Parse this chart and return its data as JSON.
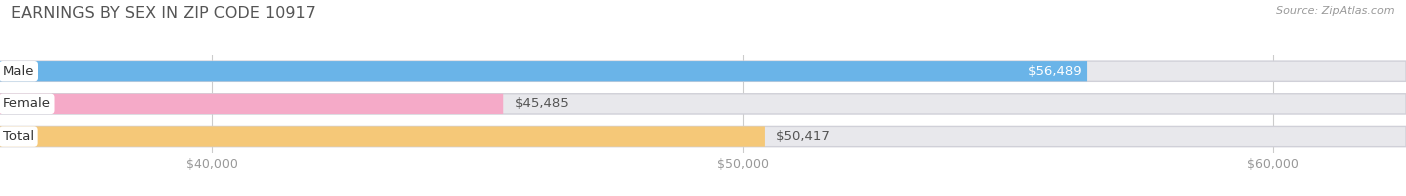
{
  "title": "EARNINGS BY SEX IN ZIP CODE 10917",
  "source": "Source: ZipAtlas.com",
  "categories": [
    "Male",
    "Female",
    "Total"
  ],
  "values": [
    56489,
    45485,
    50417
  ],
  "bar_colors": [
    "#6ab4e8",
    "#f5aac8",
    "#f5c878"
  ],
  "bar_bg_color": "#e8e8ec",
  "xmin": 36000,
  "xmax": 62500,
  "xticks": [
    40000,
    50000,
    60000
  ],
  "xtick_labels": [
    "$40,000",
    "$50,000",
    "$60,000"
  ],
  "title_color": "#555555",
  "title_fontsize": 11.5,
  "bar_height": 0.62,
  "fig_bg_color": "#ffffff",
  "value_white_threshold": 50000,
  "cat_label_fontsize": 9.5,
  "val_label_fontsize": 9.5,
  "tick_fontsize": 9,
  "tick_color": "#999999",
  "source_fontsize": 8,
  "source_color": "#999999"
}
